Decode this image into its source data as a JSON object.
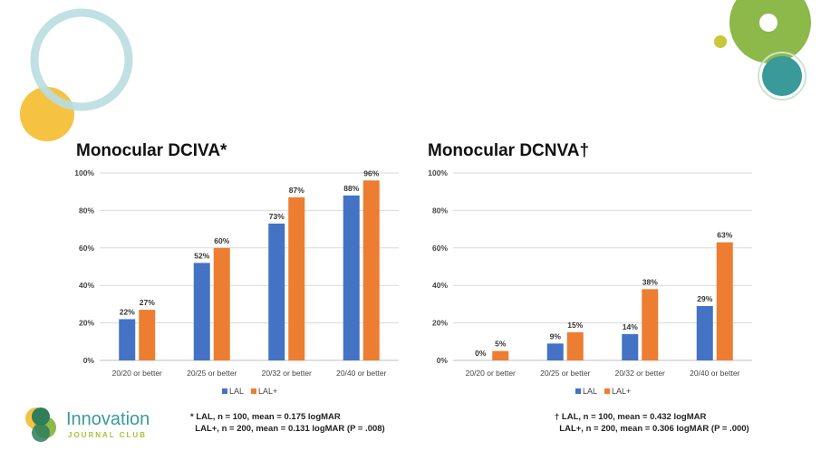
{
  "colors": {
    "LAL": "#4472c4",
    "LAL+": "#ed7d31",
    "teal": "#3a9a9a",
    "green": "#8db84a",
    "yellow": "#f5c242"
  },
  "logo": {
    "name": "Innovation",
    "sub": "JOURNAL CLUB"
  },
  "chart_data": [
    {
      "type": "bar",
      "title": "Monocular DCIVA*",
      "categories": [
        "20/20 or better",
        "20/25 or better",
        "20/32 or better",
        "20/40 or better"
      ],
      "series": [
        {
          "name": "LAL",
          "values": [
            22,
            52,
            73,
            88
          ]
        },
        {
          "name": "LAL+",
          "values": [
            27,
            60,
            87,
            96
          ]
        }
      ],
      "ylim": [
        0,
        100
      ],
      "yticks": [
        "0%",
        "20%",
        "40%",
        "60%",
        "80%",
        "100%"
      ],
      "grid": true,
      "legend": "bottom",
      "footnote": [
        "* LAL, n = 100, mean = 0.175 logMAR",
        "  LAL+, n = 200, mean = 0.131 logMAR (P = .008)"
      ]
    },
    {
      "type": "bar",
      "title": "Monocular DCNVA†",
      "categories": [
        "20/20 or better",
        "20/25 or better",
        "20/32 or better",
        "20/40 or better"
      ],
      "series": [
        {
          "name": "LAL",
          "values": [
            0,
            9,
            14,
            29
          ]
        },
        {
          "name": "LAL+",
          "values": [
            5,
            15,
            38,
            63
          ]
        }
      ],
      "ylim": [
        0,
        100
      ],
      "yticks": [
        "0%",
        "20%",
        "40%",
        "60%",
        "80%",
        "100%"
      ],
      "grid": true,
      "legend": "bottom",
      "footnote": [
        "† LAL, n = 100, mean = 0.432 logMAR",
        "  LAL+, n = 200, mean = 0.306 logMAR (P = .000)"
      ]
    }
  ]
}
